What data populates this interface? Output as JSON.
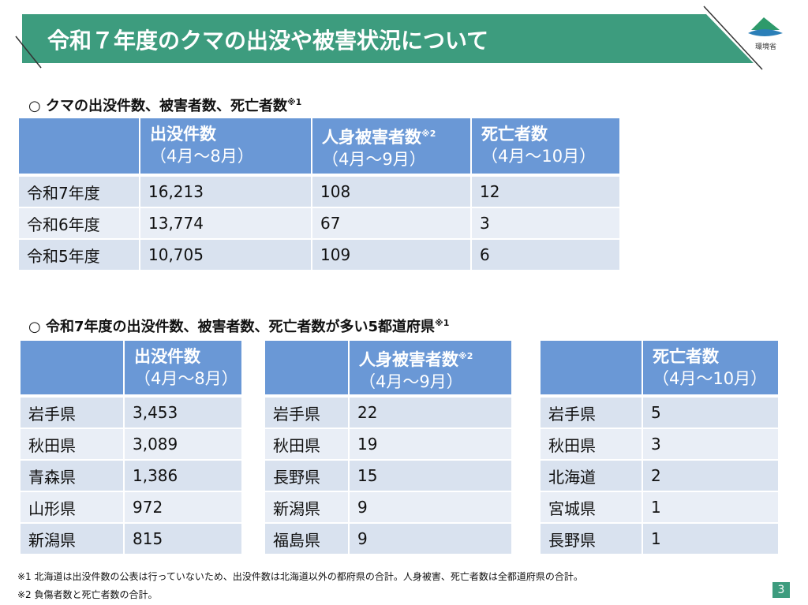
{
  "header": {
    "title": "令和７年度のクマの出没や被害状況について",
    "logo": "環境省"
  },
  "section1": {
    "heading": "○ クマの出没件数、被害者数、死亡者数",
    "note": "※1",
    "table": {
      "columns": [
        {
          "label": "出没件数",
          "period": "（4月～8月）"
        },
        {
          "label": "人身被害者数",
          "note": "※2",
          "period": "（4月～9月）"
        },
        {
          "label": "死亡者数",
          "period": "（4月～10月）"
        }
      ],
      "rows": [
        [
          "令和7年度",
          "16,213",
          "108",
          "12"
        ],
        [
          "令和6年度",
          "13,774",
          "67",
          "3"
        ],
        [
          "令和5年度",
          "10,705",
          "109",
          "6"
        ]
      ]
    }
  },
  "section2": {
    "heading": "○ 令和7年度の出没件数、被害者数、死亡者数が多い5都道府県",
    "note": "※1",
    "tables": [
      {
        "column": {
          "label": "出没件数",
          "period": "（4月～8月）"
        },
        "rows": [
          [
            "岩手県",
            "3,453"
          ],
          [
            "秋田県",
            "3,089"
          ],
          [
            "青森県",
            "1,386"
          ],
          [
            "山形県",
            "972"
          ],
          [
            "新潟県",
            "815"
          ]
        ]
      },
      {
        "column": {
          "label": "人身被害者数",
          "note": "※2",
          "period": "（4月～9月）"
        },
        "rows": [
          [
            "岩手県",
            "22"
          ],
          [
            "秋田県",
            "19"
          ],
          [
            "長野県",
            "15"
          ],
          [
            "新潟県",
            "9"
          ],
          [
            "福島県",
            "9"
          ]
        ]
      },
      {
        "column": {
          "label": "死亡者数",
          "period": "（4月～10月）"
        },
        "rows": [
          [
            "岩手県",
            "5"
          ],
          [
            "秋田県",
            "3"
          ],
          [
            "北海道",
            "2"
          ],
          [
            "宮城県",
            "1"
          ],
          [
            "長野県",
            "1"
          ]
        ]
      }
    ]
  },
  "footnotes": [
    "※1 北海道は出没件数の公表は行っていないため、出没件数は北海道以外の都府県の合計。人身被害、死亡者数は全都道府県の合計。",
    "※2 負傷者数と死亡者数の合計。"
  ],
  "page_number": "3"
}
